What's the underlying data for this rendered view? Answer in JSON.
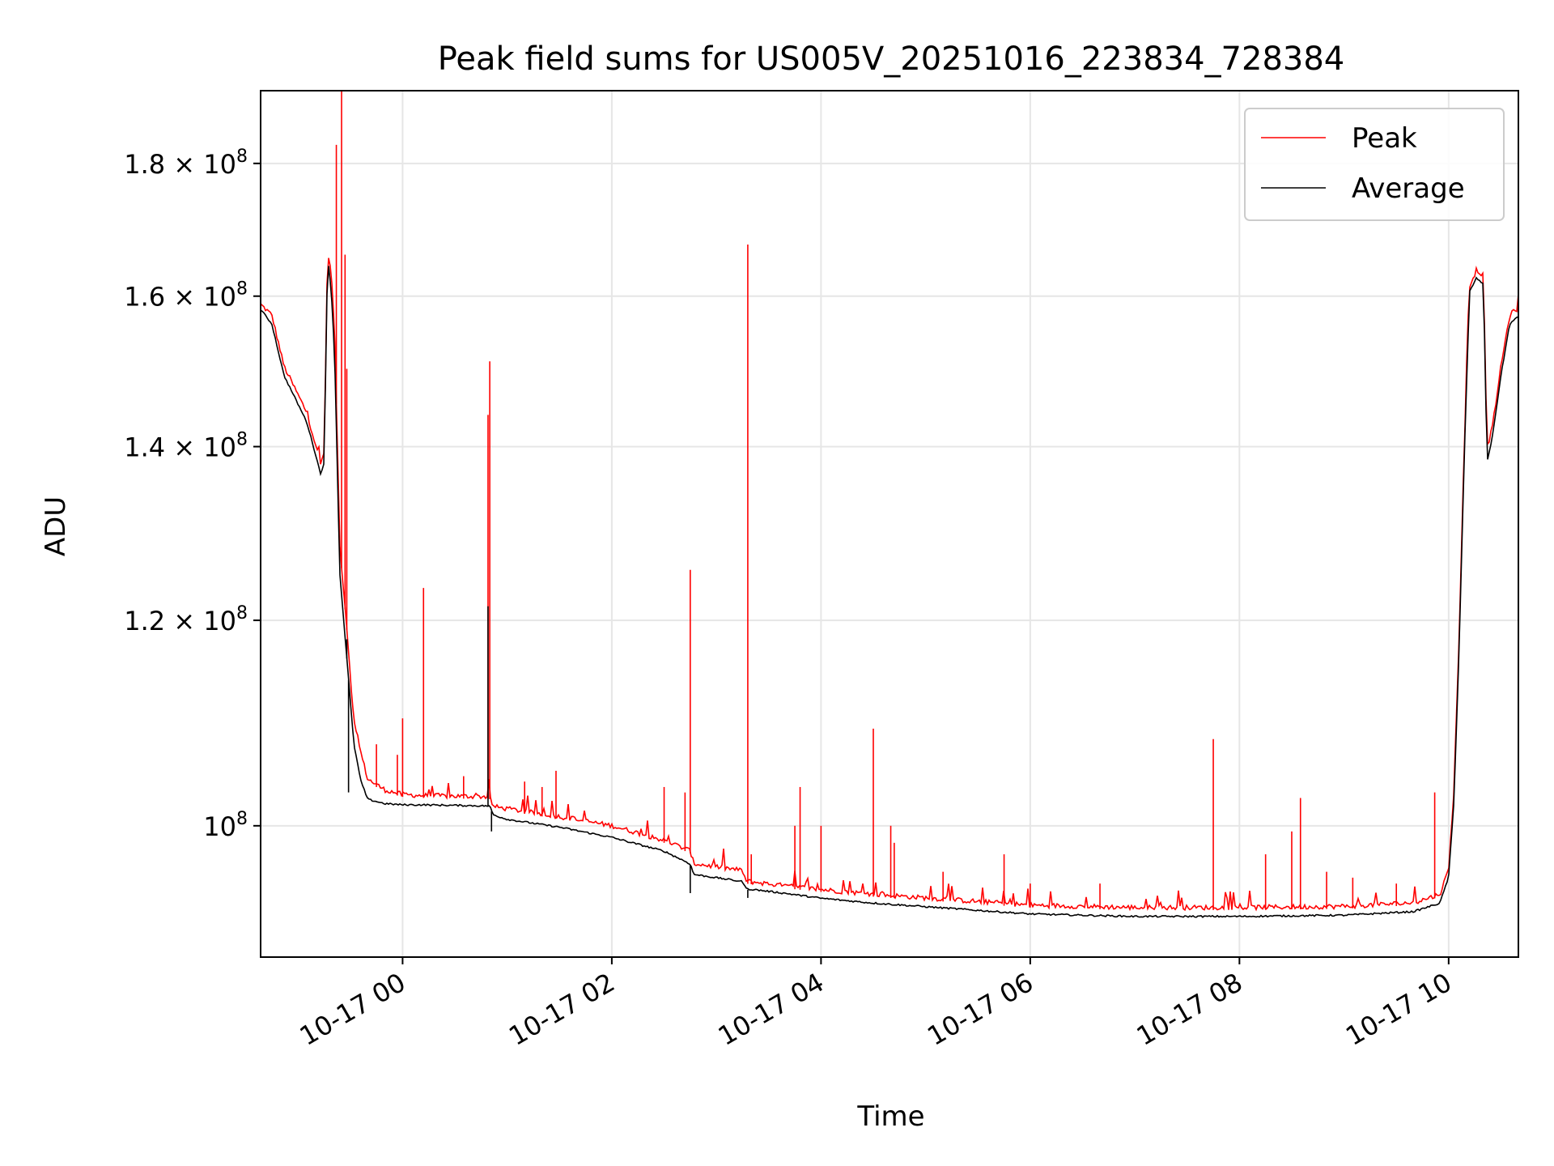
{
  "chart_data": {
    "type": "line",
    "title": "Peak field sums for US005V_20251016_223834_728384",
    "xlabel": "Time",
    "ylabel": "ADU",
    "y_scale": "log",
    "xlim": [
      "2025-10-16T22:38:34",
      "2025-10-17T10:40:00"
    ],
    "ylim": [
      89000000,
      192000000
    ],
    "x_ticks": [
      {
        "t": "2025-10-17T00:00",
        "label": "10-17 00"
      },
      {
        "t": "2025-10-17T02:00",
        "label": "10-17 02"
      },
      {
        "t": "2025-10-17T04:00",
        "label": "10-17 04"
      },
      {
        "t": "2025-10-17T06:00",
        "label": "10-17 06"
      },
      {
        "t": "2025-10-17T08:00",
        "label": "10-17 08"
      },
      {
        "t": "2025-10-17T10:00",
        "label": "10-17 10"
      }
    ],
    "y_ticks": [
      {
        "v": 100000000,
        "base": "10",
        "exp": "8"
      },
      {
        "v": 120000000,
        "mant": "1.2",
        "base": "10",
        "exp": "8"
      },
      {
        "v": 140000000,
        "mant": "1.4",
        "base": "10",
        "exp": "8"
      },
      {
        "v": 160000000,
        "mant": "1.6",
        "base": "10",
        "exp": "8"
      },
      {
        "v": 180000000,
        "mant": "1.8",
        "base": "10",
        "exp": "8"
      }
    ],
    "grid": true,
    "legend_position": "top-right",
    "series": [
      {
        "name": "Peak",
        "color": "#ff0000",
        "baseline": [
          [
            "2025-10-16T22:38:34",
            158500000
          ],
          [
            "2025-10-16T22:45",
            157000000
          ],
          [
            "2025-10-16T22:52",
            150000000
          ],
          [
            "2025-10-16T23:05",
            144000000
          ],
          [
            "2025-10-16T23:10",
            140000000
          ],
          [
            "2025-10-16T23:13",
            137500000
          ],
          [
            "2025-10-16T23:15",
            139000000
          ],
          [
            "2025-10-16T23:17",
            166500000
          ],
          [
            "2025-10-16T23:19",
            163000000
          ],
          [
            "2025-10-16T23:21",
            155000000
          ],
          [
            "2025-10-16T23:24",
            128000000
          ],
          [
            "2025-10-16T23:28",
            119000000
          ],
          [
            "2025-10-16T23:32",
            109500000
          ],
          [
            "2025-10-16T23:36",
            106500000
          ],
          [
            "2025-10-16T23:40",
            104000000
          ],
          [
            "2025-10-16T23:50",
            103000000
          ],
          [
            "2025-10-17T00:00",
            102600000
          ],
          [
            "2025-10-17T00:10",
            102500000
          ],
          [
            "2025-10-17T00:50",
            102400000
          ],
          [
            "2025-10-17T00:52",
            101500000
          ],
          [
            "2025-10-17T01:00",
            101300000
          ],
          [
            "2025-10-17T01:30",
            100600000
          ],
          [
            "2025-10-17T02:00",
            99800000
          ],
          [
            "2025-10-17T02:30",
            98500000
          ],
          [
            "2025-10-17T02:45",
            97600000
          ],
          [
            "2025-10-17T02:47",
            96500000
          ],
          [
            "2025-10-17T03:15",
            95900000
          ],
          [
            "2025-10-17T03:17",
            95000000
          ],
          [
            "2025-10-17T03:40",
            94600000
          ],
          [
            "2025-10-17T04:00",
            94300000
          ],
          [
            "2025-10-17T04:30",
            93900000
          ],
          [
            "2025-10-17T05:00",
            93600000
          ],
          [
            "2025-10-17T05:30",
            93300000
          ],
          [
            "2025-10-17T06:00",
            93000000
          ],
          [
            "2025-10-17T07:00",
            92800000
          ],
          [
            "2025-10-17T08:00",
            92800000
          ],
          [
            "2025-10-17T09:00",
            92900000
          ],
          [
            "2025-10-17T09:40",
            93200000
          ],
          [
            "2025-10-17T09:55",
            93900000
          ],
          [
            "2025-10-17T10:00",
            96000000
          ],
          [
            "2025-10-17T10:03",
            103000000
          ],
          [
            "2025-10-17T10:06",
            118000000
          ],
          [
            "2025-10-17T10:09",
            140000000
          ],
          [
            "2025-10-17T10:12",
            161000000
          ],
          [
            "2025-10-17T10:16",
            163500000
          ],
          [
            "2025-10-17T10:20",
            162500000
          ],
          [
            "2025-10-17T10:22",
            139500000
          ],
          [
            "2025-10-17T10:25",
            142000000
          ],
          [
            "2025-10-17T10:30",
            150000000
          ],
          [
            "2025-10-17T10:35",
            157000000
          ],
          [
            "2025-10-17T10:40",
            158000000
          ]
        ],
        "spikes": [
          [
            "2025-10-16T23:22",
            183000000
          ],
          [
            "2025-10-16T23:25",
            192000000
          ],
          [
            "2025-10-16T23:27",
            166000000
          ],
          [
            "2025-10-16T23:28",
            150000000
          ],
          [
            "2025-10-16T23:45",
            107500000
          ],
          [
            "2025-10-16T23:57",
            106500000
          ],
          [
            "2025-10-17T00:00",
            110000000
          ],
          [
            "2025-10-17T00:12",
            123500000
          ],
          [
            "2025-10-17T00:35",
            104500000
          ],
          [
            "2025-10-17T00:49",
            144000000
          ],
          [
            "2025-10-17T00:50",
            151000000
          ],
          [
            "2025-10-17T01:10",
            104000000
          ],
          [
            "2025-10-17T01:20",
            103500000
          ],
          [
            "2025-10-17T01:28",
            105000000
          ],
          [
            "2025-10-17T02:30",
            103500000
          ],
          [
            "2025-10-17T02:42",
            103000000
          ],
          [
            "2025-10-17T02:45",
            125500000
          ],
          [
            "2025-10-17T03:18",
            167500000
          ],
          [
            "2025-10-17T03:20",
            97500000
          ],
          [
            "2025-10-17T03:45",
            100000000
          ],
          [
            "2025-10-17T03:48",
            103500000
          ],
          [
            "2025-10-17T04:00",
            100000000
          ],
          [
            "2025-10-17T04:30",
            109000000
          ],
          [
            "2025-10-17T04:40",
            100000000
          ],
          [
            "2025-10-17T04:42",
            98500000
          ],
          [
            "2025-10-17T05:10",
            96000000
          ],
          [
            "2025-10-17T05:45",
            97500000
          ],
          [
            "2025-10-17T06:00",
            95000000
          ],
          [
            "2025-10-17T06:40",
            95000000
          ],
          [
            "2025-10-17T07:45",
            108000000
          ],
          [
            "2025-10-17T08:15",
            97500000
          ],
          [
            "2025-10-17T08:30",
            99500000
          ],
          [
            "2025-10-17T08:35",
            102500000
          ],
          [
            "2025-10-17T08:50",
            96000000
          ],
          [
            "2025-10-17T09:05",
            95500000
          ],
          [
            "2025-10-17T09:30",
            95000000
          ],
          [
            "2025-10-17T09:52",
            103000000
          ]
        ]
      },
      {
        "name": "Average",
        "color": "#000000",
        "baseline": [
          [
            "2025-10-16T22:38:34",
            158000000
          ],
          [
            "2025-10-16T22:45",
            156000000
          ],
          [
            "2025-10-16T22:52",
            149000000
          ],
          [
            "2025-10-16T23:05",
            143000000
          ],
          [
            "2025-10-16T23:10",
            139000000
          ],
          [
            "2025-10-16T23:13",
            136500000
          ],
          [
            "2025-10-16T23:15",
            138000000
          ],
          [
            "2025-10-16T23:17",
            165500000
          ],
          [
            "2025-10-16T23:19",
            161000000
          ],
          [
            "2025-10-16T23:21",
            152000000
          ],
          [
            "2025-10-16T23:24",
            125000000
          ],
          [
            "2025-10-16T23:28",
            116000000
          ],
          [
            "2025-10-16T23:32",
            107500000
          ],
          [
            "2025-10-16T23:36",
            104000000
          ],
          [
            "2025-10-16T23:40",
            102300000
          ],
          [
            "2025-10-16T23:50",
            101900000
          ],
          [
            "2025-10-17T00:00",
            101800000
          ],
          [
            "2025-10-17T00:10",
            101800000
          ],
          [
            "2025-10-17T00:50",
            101700000
          ],
          [
            "2025-10-17T00:52",
            100900000
          ],
          [
            "2025-10-17T01:00",
            100500000
          ],
          [
            "2025-10-17T01:30",
            99800000
          ],
          [
            "2025-10-17T02:00",
            98900000
          ],
          [
            "2025-10-17T02:30",
            97700000
          ],
          [
            "2025-10-17T02:45",
            96600000
          ],
          [
            "2025-10-17T02:47",
            95700000
          ],
          [
            "2025-10-17T03:15",
            95100000
          ],
          [
            "2025-10-17T03:17",
            94500000
          ],
          [
            "2025-10-17T03:40",
            94100000
          ],
          [
            "2025-10-17T04:00",
            93700000
          ],
          [
            "2025-10-17T04:30",
            93300000
          ],
          [
            "2025-10-17T05:00",
            93000000
          ],
          [
            "2025-10-17T05:30",
            92700000
          ],
          [
            "2025-10-17T06:00",
            92400000
          ],
          [
            "2025-10-17T07:00",
            92200000
          ],
          [
            "2025-10-17T08:00",
            92200000
          ],
          [
            "2025-10-17T09:00",
            92300000
          ],
          [
            "2025-10-17T09:40",
            92600000
          ],
          [
            "2025-10-17T09:55",
            93300000
          ],
          [
            "2025-10-17T10:00",
            95500000
          ],
          [
            "2025-10-17T10:03",
            102000000
          ],
          [
            "2025-10-17T10:06",
            117000000
          ],
          [
            "2025-10-17T10:09",
            139000000
          ],
          [
            "2025-10-17T10:12",
            160500000
          ],
          [
            "2025-10-17T10:16",
            162500000
          ],
          [
            "2025-10-17T10:20",
            161500000
          ],
          [
            "2025-10-17T10:22",
            138000000
          ],
          [
            "2025-10-17T10:25",
            141000000
          ],
          [
            "2025-10-17T10:30",
            149000000
          ],
          [
            "2025-10-17T10:35",
            156000000
          ],
          [
            "2025-10-17T10:40",
            157000000
          ]
        ],
        "spikes": [
          [
            "2025-10-16T23:28",
            118000000
          ],
          [
            "2025-10-16T23:29",
            103000000
          ],
          [
            "2025-10-17T00:49",
            121500000
          ],
          [
            "2025-10-17T00:51",
            99500000
          ],
          [
            "2025-10-17T02:45",
            94200000
          ],
          [
            "2025-10-17T03:18",
            93800000
          ]
        ]
      }
    ]
  }
}
